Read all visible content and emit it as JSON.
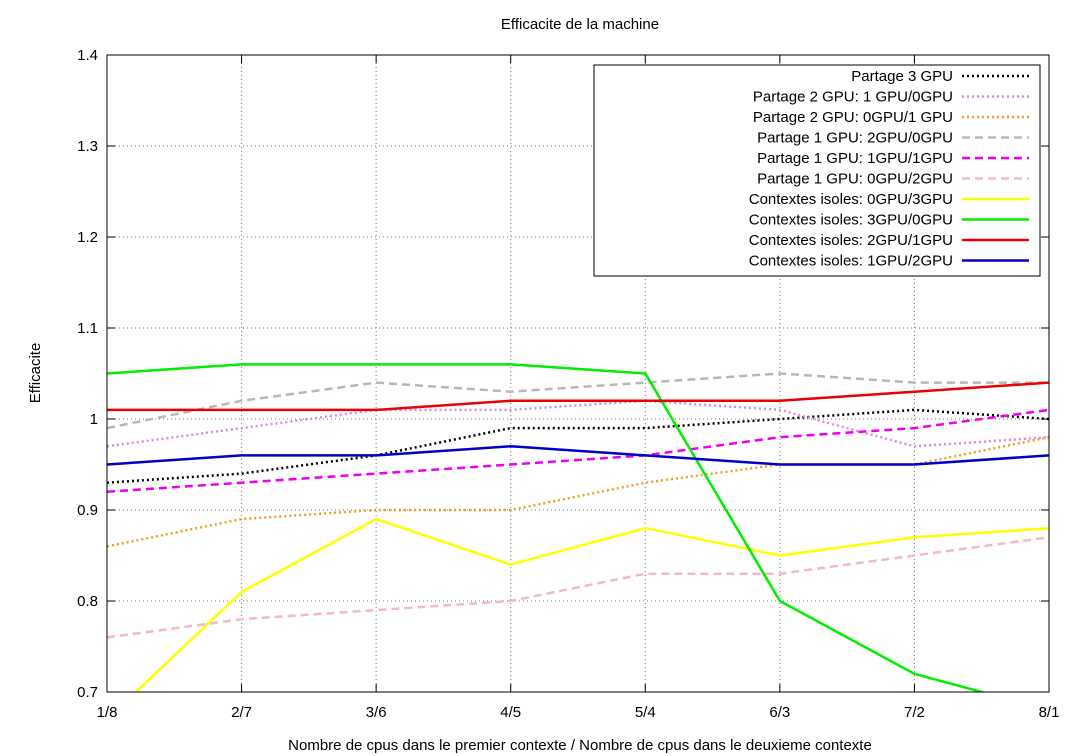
{
  "chart_data": {
    "type": "line",
    "title": "Efficacite de la machine",
    "xlabel": "Nombre de cpus dans le premier contexte / Nombre de cpus dans le deuxieme contexte",
    "ylabel": "Efficacite",
    "categories": [
      "1/8",
      "2/7",
      "3/6",
      "4/5",
      "5/4",
      "6/3",
      "7/2",
      "8/1"
    ],
    "ylim": [
      0.7,
      1.4
    ],
    "yticks": [
      "0.7",
      "0.8",
      "0.9",
      "1",
      "1.1",
      "1.2",
      "1.3",
      "1.4"
    ],
    "grid": true,
    "legend_position": "top-right",
    "series": [
      {
        "name": "Partage 3 GPU",
        "color": "#000000",
        "dash": "dotted",
        "values": [
          0.93,
          0.94,
          0.96,
          0.99,
          0.99,
          1.0,
          1.01,
          1.0
        ]
      },
      {
        "name": "Partage 2 GPU: 1 GPU/0GPU",
        "color": "#dd88dd",
        "dash": "dotted",
        "values": [
          0.97,
          0.99,
          1.01,
          1.01,
          1.02,
          1.01,
          0.97,
          0.98
        ]
      },
      {
        "name": "Partage 2 GPU: 0GPU/1 GPU",
        "color": "#f0a020",
        "dash": "dotted",
        "values": [
          0.86,
          0.89,
          0.9,
          0.9,
          0.93,
          0.95,
          0.95,
          0.98
        ]
      },
      {
        "name": "Partage 1 GPU: 2GPU/0GPU",
        "color": "#b8b8b8",
        "dash": "dashed",
        "values": [
          0.99,
          1.02,
          1.04,
          1.03,
          1.04,
          1.05,
          1.04,
          1.04
        ]
      },
      {
        "name": "Partage 1 GPU: 1GPU/1GPU",
        "color": "#ee00ee",
        "dash": "dashed",
        "values": [
          0.92,
          0.93,
          0.94,
          0.95,
          0.96,
          0.98,
          0.99,
          1.01
        ]
      },
      {
        "name": "Partage 1 GPU: 0GPU/2GPU",
        "color": "#f4b8c8",
        "dash": "dashed",
        "values": [
          0.76,
          0.78,
          0.79,
          0.8,
          0.83,
          0.83,
          0.85,
          0.87
        ]
      },
      {
        "name": "Contextes isoles: 0GPU/3GPU",
        "color": "#ffff00",
        "dash": "solid",
        "values": [
          0.67,
          0.81,
          0.89,
          0.84,
          0.88,
          0.85,
          0.87,
          0.88
        ]
      },
      {
        "name": "Contextes isoles: 3GPU/0GPU",
        "color": "#00ee00",
        "dash": "solid",
        "values": [
          1.05,
          1.06,
          1.06,
          1.06,
          1.05,
          0.8,
          0.72,
          0.68
        ]
      },
      {
        "name": "Contextes isoles: 2GPU/1GPU",
        "color": "#ee0000",
        "dash": "solid",
        "values": [
          1.01,
          1.01,
          1.01,
          1.02,
          1.02,
          1.02,
          1.03,
          1.04
        ]
      },
      {
        "name": "Contextes isoles: 1GPU/2GPU",
        "color": "#0000cc",
        "dash": "solid",
        "values": [
          0.95,
          0.96,
          0.96,
          0.97,
          0.96,
          0.95,
          0.95,
          0.96
        ]
      }
    ]
  }
}
